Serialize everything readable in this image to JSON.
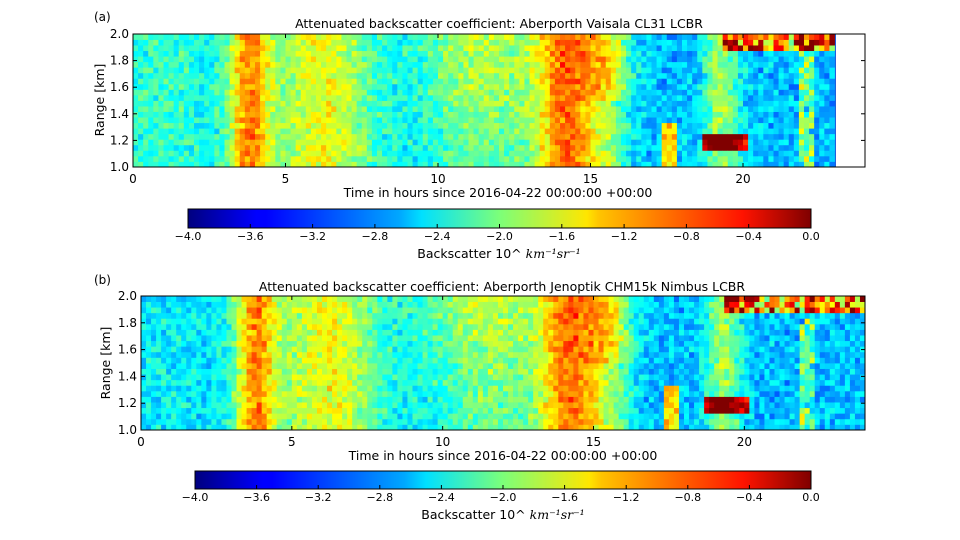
{
  "chart_data": [
    {
      "type": "heatmap",
      "panel_label": "(a)",
      "title": "Attenuated backscatter coefficient: Aberporth Vaisala CL31 LCBR",
      "xlabel": "Time in hours since 2016-04-22 00:00:00 +00:00",
      "ylabel": "Range [km]",
      "xlim": [
        0,
        24
      ],
      "ylim": [
        1.0,
        2.0
      ],
      "x_ticks": [
        0,
        5,
        10,
        15,
        20
      ],
      "y_ticks": [
        1.0,
        1.2,
        1.4,
        1.6,
        1.8,
        2.0
      ],
      "data_end_hour": 23,
      "colorbar": {
        "label": "Backscatter 10^",
        "label_units": "km⁻¹sr⁻¹",
        "range": [
          -4.0,
          0.0
        ],
        "ticks": [
          -4.0,
          -3.6,
          -3.2,
          -2.8,
          -2.4,
          -2.0,
          -1.6,
          -1.2,
          -0.8,
          -0.4,
          0.0
        ],
        "colormap": "jet"
      }
    },
    {
      "type": "heatmap",
      "panel_label": "(b)",
      "title": "Attenuated backscatter coefficient: Aberporth Jenoptik CHM15k Nimbus LCBR",
      "xlabel": "Time in hours since 2016-04-22 00:00:00 +00:00",
      "ylabel": "Range [km]",
      "xlim": [
        0,
        24
      ],
      "ylim": [
        1.0,
        2.0
      ],
      "x_ticks": [
        0,
        5,
        10,
        15,
        20
      ],
      "y_ticks": [
        1.0,
        1.2,
        1.4,
        1.6,
        1.8,
        2.0
      ],
      "data_end_hour": 24,
      "colorbar": {
        "label": "Backscatter 10^",
        "label_units": "km⁻¹sr⁻¹",
        "range": [
          -4.0,
          0.0
        ],
        "ticks": [
          -4.0,
          -3.6,
          -3.2,
          -2.8,
          -2.4,
          -2.0,
          -1.6,
          -1.2,
          -0.8,
          -0.4,
          0.0
        ],
        "colormap": "jet"
      }
    }
  ]
}
